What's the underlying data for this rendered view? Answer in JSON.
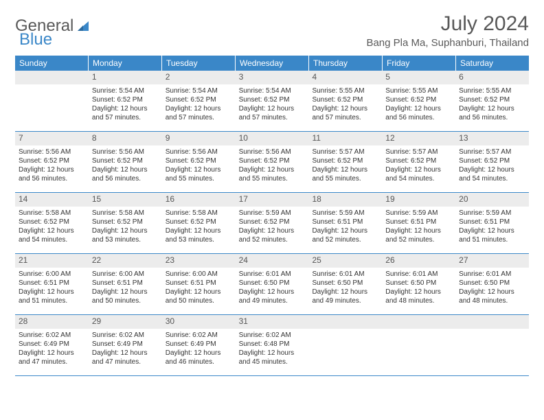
{
  "logo": {
    "text1": "General",
    "text2": "Blue"
  },
  "title": "July 2024",
  "location": "Bang Pla Ma, Suphanburi, Thailand",
  "colors": {
    "header_bg": "#3a87c8",
    "daynum_bg": "#ececec",
    "text": "#333333",
    "title_text": "#595959",
    "week_border": "#3a87c8"
  },
  "weekdays": [
    "Sunday",
    "Monday",
    "Tuesday",
    "Wednesday",
    "Thursday",
    "Friday",
    "Saturday"
  ],
  "weeks": [
    [
      {
        "n": "",
        "sr": "",
        "ss": "",
        "dl": ""
      },
      {
        "n": "1",
        "sr": "Sunrise: 5:54 AM",
        "ss": "Sunset: 6:52 PM",
        "dl": "Daylight: 12 hours and 57 minutes."
      },
      {
        "n": "2",
        "sr": "Sunrise: 5:54 AM",
        "ss": "Sunset: 6:52 PM",
        "dl": "Daylight: 12 hours and 57 minutes."
      },
      {
        "n": "3",
        "sr": "Sunrise: 5:54 AM",
        "ss": "Sunset: 6:52 PM",
        "dl": "Daylight: 12 hours and 57 minutes."
      },
      {
        "n": "4",
        "sr": "Sunrise: 5:55 AM",
        "ss": "Sunset: 6:52 PM",
        "dl": "Daylight: 12 hours and 57 minutes."
      },
      {
        "n": "5",
        "sr": "Sunrise: 5:55 AM",
        "ss": "Sunset: 6:52 PM",
        "dl": "Daylight: 12 hours and 56 minutes."
      },
      {
        "n": "6",
        "sr": "Sunrise: 5:55 AM",
        "ss": "Sunset: 6:52 PM",
        "dl": "Daylight: 12 hours and 56 minutes."
      }
    ],
    [
      {
        "n": "7",
        "sr": "Sunrise: 5:56 AM",
        "ss": "Sunset: 6:52 PM",
        "dl": "Daylight: 12 hours and 56 minutes."
      },
      {
        "n": "8",
        "sr": "Sunrise: 5:56 AM",
        "ss": "Sunset: 6:52 PM",
        "dl": "Daylight: 12 hours and 56 minutes."
      },
      {
        "n": "9",
        "sr": "Sunrise: 5:56 AM",
        "ss": "Sunset: 6:52 PM",
        "dl": "Daylight: 12 hours and 55 minutes."
      },
      {
        "n": "10",
        "sr": "Sunrise: 5:56 AM",
        "ss": "Sunset: 6:52 PM",
        "dl": "Daylight: 12 hours and 55 minutes."
      },
      {
        "n": "11",
        "sr": "Sunrise: 5:57 AM",
        "ss": "Sunset: 6:52 PM",
        "dl": "Daylight: 12 hours and 55 minutes."
      },
      {
        "n": "12",
        "sr": "Sunrise: 5:57 AM",
        "ss": "Sunset: 6:52 PM",
        "dl": "Daylight: 12 hours and 54 minutes."
      },
      {
        "n": "13",
        "sr": "Sunrise: 5:57 AM",
        "ss": "Sunset: 6:52 PM",
        "dl": "Daylight: 12 hours and 54 minutes."
      }
    ],
    [
      {
        "n": "14",
        "sr": "Sunrise: 5:58 AM",
        "ss": "Sunset: 6:52 PM",
        "dl": "Daylight: 12 hours and 54 minutes."
      },
      {
        "n": "15",
        "sr": "Sunrise: 5:58 AM",
        "ss": "Sunset: 6:52 PM",
        "dl": "Daylight: 12 hours and 53 minutes."
      },
      {
        "n": "16",
        "sr": "Sunrise: 5:58 AM",
        "ss": "Sunset: 6:52 PM",
        "dl": "Daylight: 12 hours and 53 minutes."
      },
      {
        "n": "17",
        "sr": "Sunrise: 5:59 AM",
        "ss": "Sunset: 6:52 PM",
        "dl": "Daylight: 12 hours and 52 minutes."
      },
      {
        "n": "18",
        "sr": "Sunrise: 5:59 AM",
        "ss": "Sunset: 6:51 PM",
        "dl": "Daylight: 12 hours and 52 minutes."
      },
      {
        "n": "19",
        "sr": "Sunrise: 5:59 AM",
        "ss": "Sunset: 6:51 PM",
        "dl": "Daylight: 12 hours and 52 minutes."
      },
      {
        "n": "20",
        "sr": "Sunrise: 5:59 AM",
        "ss": "Sunset: 6:51 PM",
        "dl": "Daylight: 12 hours and 51 minutes."
      }
    ],
    [
      {
        "n": "21",
        "sr": "Sunrise: 6:00 AM",
        "ss": "Sunset: 6:51 PM",
        "dl": "Daylight: 12 hours and 51 minutes."
      },
      {
        "n": "22",
        "sr": "Sunrise: 6:00 AM",
        "ss": "Sunset: 6:51 PM",
        "dl": "Daylight: 12 hours and 50 minutes."
      },
      {
        "n": "23",
        "sr": "Sunrise: 6:00 AM",
        "ss": "Sunset: 6:51 PM",
        "dl": "Daylight: 12 hours and 50 minutes."
      },
      {
        "n": "24",
        "sr": "Sunrise: 6:01 AM",
        "ss": "Sunset: 6:50 PM",
        "dl": "Daylight: 12 hours and 49 minutes."
      },
      {
        "n": "25",
        "sr": "Sunrise: 6:01 AM",
        "ss": "Sunset: 6:50 PM",
        "dl": "Daylight: 12 hours and 49 minutes."
      },
      {
        "n": "26",
        "sr": "Sunrise: 6:01 AM",
        "ss": "Sunset: 6:50 PM",
        "dl": "Daylight: 12 hours and 48 minutes."
      },
      {
        "n": "27",
        "sr": "Sunrise: 6:01 AM",
        "ss": "Sunset: 6:50 PM",
        "dl": "Daylight: 12 hours and 48 minutes."
      }
    ],
    [
      {
        "n": "28",
        "sr": "Sunrise: 6:02 AM",
        "ss": "Sunset: 6:49 PM",
        "dl": "Daylight: 12 hours and 47 minutes."
      },
      {
        "n": "29",
        "sr": "Sunrise: 6:02 AM",
        "ss": "Sunset: 6:49 PM",
        "dl": "Daylight: 12 hours and 47 minutes."
      },
      {
        "n": "30",
        "sr": "Sunrise: 6:02 AM",
        "ss": "Sunset: 6:49 PM",
        "dl": "Daylight: 12 hours and 46 minutes."
      },
      {
        "n": "31",
        "sr": "Sunrise: 6:02 AM",
        "ss": "Sunset: 6:48 PM",
        "dl": "Daylight: 12 hours and 45 minutes."
      },
      {
        "n": "",
        "sr": "",
        "ss": "",
        "dl": ""
      },
      {
        "n": "",
        "sr": "",
        "ss": "",
        "dl": ""
      },
      {
        "n": "",
        "sr": "",
        "ss": "",
        "dl": ""
      }
    ]
  ]
}
